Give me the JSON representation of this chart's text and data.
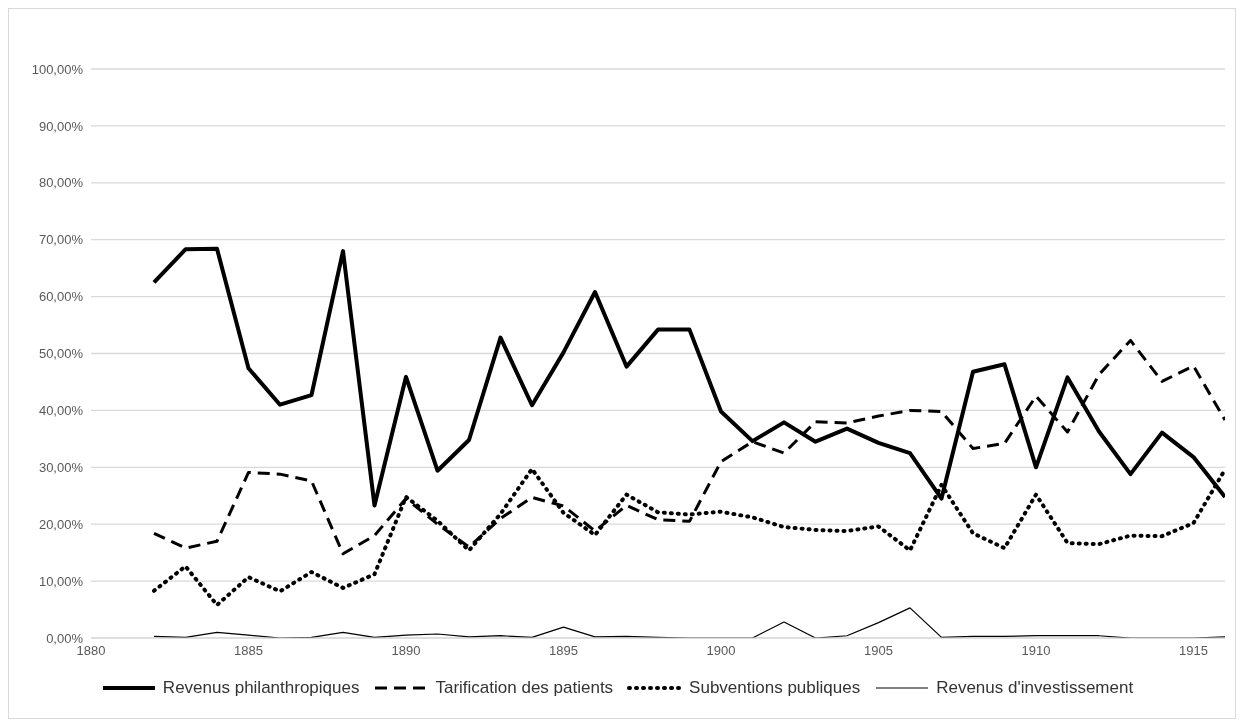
{
  "chart_data": {
    "type": "line",
    "x": [
      1882,
      1883,
      1884,
      1885,
      1886,
      1887,
      1888,
      1889,
      1890,
      1891,
      1892,
      1893,
      1894,
      1895,
      1896,
      1897,
      1898,
      1899,
      1900,
      1901,
      1902,
      1903,
      1904,
      1905,
      1906,
      1907,
      1908,
      1909,
      1910,
      1911,
      1912,
      1913,
      1914,
      1915,
      1916
    ],
    "series": [
      {
        "name": "Revenus philanthropiques",
        "color": "#000000",
        "line_style": "solid",
        "values": [
          62.5,
          68.3,
          68.4,
          47.4,
          41.0,
          42.7,
          68.0,
          23.3,
          45.9,
          29.4,
          34.8,
          52.8,
          40.9,
          50.2,
          60.8,
          47.7,
          54.2,
          54.2,
          39.8,
          34.6,
          37.9,
          34.5,
          36.8,
          34.3,
          32.5,
          24.5,
          46.8,
          48.1,
          30.0,
          45.8,
          36.3,
          28.8,
          36.1,
          31.8,
          24.8
        ]
      },
      {
        "name": "Tarification des patients",
        "color": "#000000",
        "line_style": "dashed",
        "values": [
          18.4,
          15.8,
          17.0,
          29.1,
          28.8,
          27.6,
          14.8,
          18.0,
          24.5,
          20.0,
          16.0,
          21.0,
          24.7,
          23.2,
          18.8,
          23.3,
          20.8,
          20.5,
          31.0,
          34.5,
          32.5,
          38.0,
          37.8,
          39.0,
          40.0,
          39.8,
          33.3,
          34.2,
          42.5,
          36.2,
          46.3,
          52.3,
          45.1,
          47.8,
          38.3
        ]
      },
      {
        "name": "Subventions publiques",
        "color": "#000000",
        "line_style": "dotted",
        "values": [
          8.3,
          12.6,
          5.8,
          10.7,
          8.2,
          11.6,
          8.8,
          11.2,
          24.8,
          20.6,
          15.4,
          21.8,
          29.7,
          22.0,
          18.1,
          25.2,
          22.1,
          21.7,
          22.2,
          21.2,
          19.5,
          19.0,
          18.8,
          19.6,
          15.4,
          26.9,
          18.4,
          15.8,
          25.2,
          16.7,
          16.5,
          18.0,
          17.9,
          20.2,
          29.6
        ]
      },
      {
        "name": "Revenus d'investissement",
        "color": "#000000",
        "line_style": "solid",
        "values": [
          0.3,
          0.1,
          1.0,
          0.5,
          0.0,
          0.1,
          1.0,
          0.1,
          0.5,
          0.7,
          0.2,
          0.4,
          0.1,
          1.9,
          0.2,
          0.3,
          0.1,
          0.0,
          0.0,
          0.0,
          2.8,
          0.0,
          0.4,
          2.7,
          5.3,
          0.1,
          0.3,
          0.3,
          0.4,
          0.4,
          0.4,
          0.0,
          0.0,
          0.0,
          0.2
        ]
      }
    ],
    "xlim": [
      1880,
      1916
    ],
    "xticks": [
      1880,
      1885,
      1890,
      1895,
      1900,
      1905,
      1910,
      1915
    ],
    "ylim": [
      0,
      100
    ],
    "yticks": [
      {
        "value": 0,
        "label": "0,00%"
      },
      {
        "value": 10,
        "label": "10,00%"
      },
      {
        "value": 20,
        "label": "20,00%"
      },
      {
        "value": 30,
        "label": "30,00%"
      },
      {
        "value": 40,
        "label": "40,00%"
      },
      {
        "value": 50,
        "label": "50,00%"
      },
      {
        "value": 60,
        "label": "60,00%"
      },
      {
        "value": 70,
        "label": "70,00%"
      },
      {
        "value": 80,
        "label": "80,00%"
      },
      {
        "value": 90,
        "label": "90,00%"
      },
      {
        "value": 100,
        "label": "100,00%"
      }
    ],
    "grid": "y",
    "legend": "bottom",
    "marker": "none"
  }
}
